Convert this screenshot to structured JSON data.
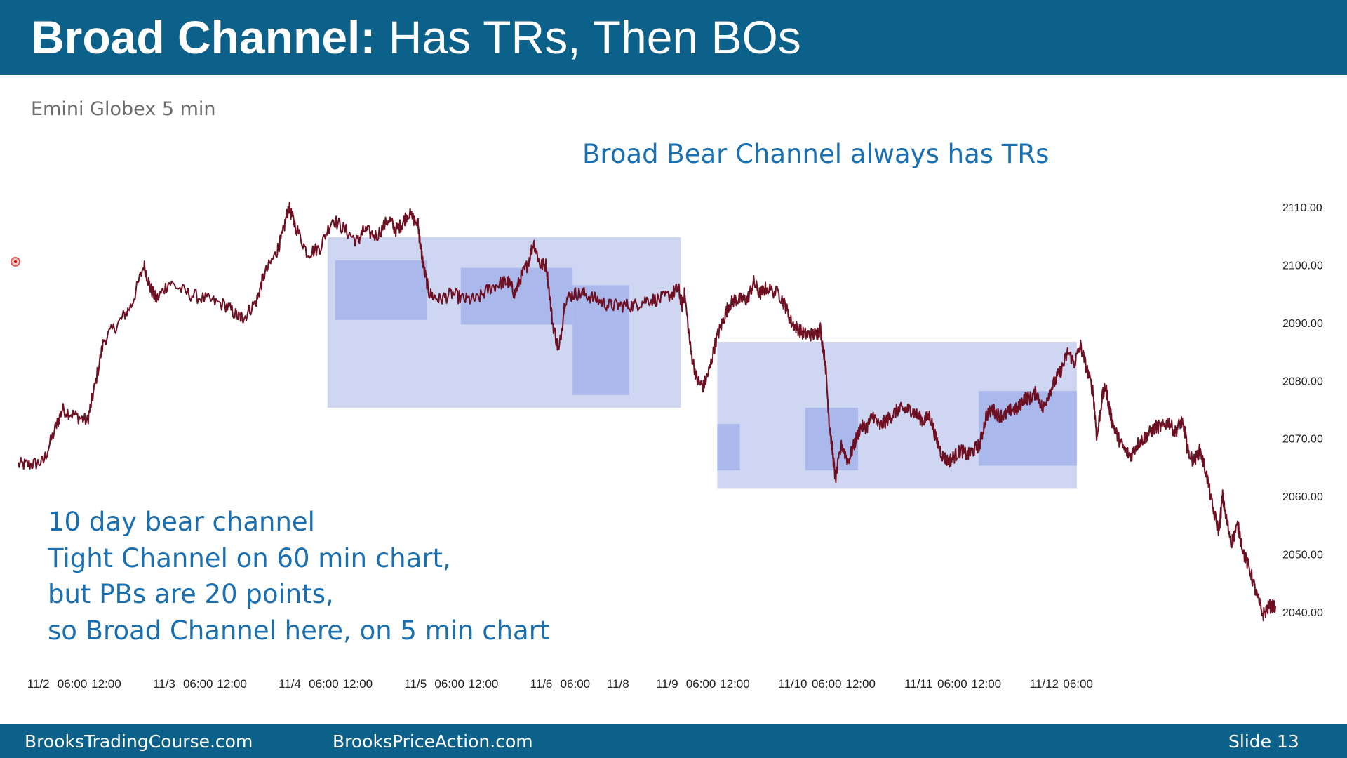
{
  "slide": {
    "title_bold": "Broad Channel:",
    "title_rest": " Has TRs, Then BOs",
    "subtitle": "Emini Globex 5 min",
    "annotation_top": "Broad Bear Channel always has TRs",
    "annotation_bottom": [
      "10 day bear channel",
      "Tight Channel on 60 min chart,",
      "but PBs are 20 points,",
      "so Broad Channel here, on 5 min chart"
    ],
    "footer": {
      "left": "BrooksTradingCourse.com",
      "middle": "BrooksPriceAction.com",
      "right": "Slide  13"
    }
  },
  "colors": {
    "header_bg": "#0b6189",
    "price_line": "#6e0f22",
    "big_range_fill": "#cfd6f1",
    "small_range_fill": "#a4b3ea",
    "annotation_text": "#1a6fb0"
  },
  "chart_data": {
    "type": "line",
    "title": "",
    "xlabel": "",
    "ylabel": "",
    "ylim": [
      2038,
      2112
    ],
    "y_ticks": [
      "2110.00",
      "2100.00",
      "2090.00",
      "2080.00",
      "2070.00",
      "2060.00",
      "2050.00",
      "2040.00"
    ],
    "y_tick_values": [
      2110,
      2100,
      2090,
      2080,
      2070,
      2060,
      2050,
      2040
    ],
    "x_range": [
      0,
      10
    ],
    "x_ticks": [
      {
        "label": "11/2",
        "x": 0.16
      },
      {
        "label": "06:00",
        "x": 0.43
      },
      {
        "label": "12:00",
        "x": 0.7
      },
      {
        "label": "11/3",
        "x": 1.16
      },
      {
        "label": "06:00",
        "x": 1.43
      },
      {
        "label": "12:00",
        "x": 1.7
      },
      {
        "label": "11/4",
        "x": 2.16
      },
      {
        "label": "06:00",
        "x": 2.43
      },
      {
        "label": "12:00",
        "x": 2.7
      },
      {
        "label": "11/5",
        "x": 3.16
      },
      {
        "label": "06:00",
        "x": 3.43
      },
      {
        "label": "12:00",
        "x": 3.7
      },
      {
        "label": "11/6",
        "x": 4.16
      },
      {
        "label": "06:00",
        "x": 4.43
      },
      {
        "label": "11/8",
        "x": 4.77
      },
      {
        "label": "11/9",
        "x": 5.16
      },
      {
        "label": "06:00",
        "x": 5.43
      },
      {
        "label": "12:00",
        "x": 5.7
      },
      {
        "label": "11/10",
        "x": 6.16
      },
      {
        "label": "06:00",
        "x": 6.43
      },
      {
        "label": "12:00",
        "x": 6.7
      },
      {
        "label": "11/11",
        "x": 7.16
      },
      {
        "label": "06:00",
        "x": 7.43
      },
      {
        "label": "12:00",
        "x": 7.7
      },
      {
        "label": "11/12",
        "x": 8.16
      },
      {
        "label": "06:00",
        "x": 8.43
      }
    ],
    "series": [
      {
        "values": [
          [
            0.0,
            2065.5
          ],
          [
            0.1,
            2065.5
          ],
          [
            0.2,
            2066
          ],
          [
            0.3,
            2072
          ],
          [
            0.35,
            2075
          ],
          [
            0.45,
            2074
          ],
          [
            0.55,
            2073
          ],
          [
            0.6,
            2078
          ],
          [
            0.68,
            2087
          ],
          [
            0.8,
            2090
          ],
          [
            0.9,
            2093
          ],
          [
            1.0,
            2100
          ],
          [
            1.05,
            2096
          ],
          [
            1.1,
            2094
          ],
          [
            1.2,
            2097
          ],
          [
            1.35,
            2095
          ],
          [
            1.5,
            2094
          ],
          [
            1.65,
            2093
          ],
          [
            1.75,
            2091
          ],
          [
            1.8,
            2091
          ],
          [
            1.9,
            2094
          ],
          [
            1.95,
            2098
          ],
          [
            2.05,
            2102
          ],
          [
            2.1,
            2105
          ],
          [
            2.15,
            2110
          ],
          [
            2.2,
            2107
          ],
          [
            2.3,
            2102
          ],
          [
            2.4,
            2103
          ],
          [
            2.5,
            2108
          ],
          [
            2.6,
            2106
          ],
          [
            2.7,
            2104
          ],
          [
            2.75,
            2106
          ],
          [
            2.85,
            2105
          ],
          [
            2.95,
            2108
          ],
          [
            3.0,
            2106
          ],
          [
            3.05,
            2107
          ],
          [
            3.1,
            2109
          ],
          [
            3.18,
            2107
          ],
          [
            3.2,
            2103
          ],
          [
            3.23,
            2099
          ],
          [
            3.27,
            2095
          ],
          [
            3.35,
            2094
          ],
          [
            3.45,
            2095
          ],
          [
            3.55,
            2094
          ],
          [
            3.65,
            2094
          ],
          [
            3.75,
            2096
          ],
          [
            3.85,
            2097
          ],
          [
            3.9,
            2097
          ],
          [
            3.95,
            2095
          ],
          [
            4.0,
            2098
          ],
          [
            4.05,
            2100
          ],
          [
            4.1,
            2104
          ],
          [
            4.15,
            2100
          ],
          [
            4.2,
            2100
          ],
          [
            4.25,
            2090
          ],
          [
            4.3,
            2085
          ],
          [
            4.35,
            2094
          ],
          [
            4.42,
            2095
          ],
          [
            4.5,
            2095
          ],
          [
            4.6,
            2094
          ],
          [
            4.7,
            2093
          ],
          [
            4.8,
            2093
          ],
          [
            4.9,
            2093
          ],
          [
            5.0,
            2094
          ],
          [
            5.1,
            2094
          ],
          [
            5.2,
            2095
          ],
          [
            5.25,
            2096
          ],
          [
            5.28,
            2093
          ],
          [
            5.3,
            2095
          ],
          [
            5.35,
            2085
          ],
          [
            5.4,
            2080
          ],
          [
            5.45,
            2079
          ],
          [
            5.5,
            2082
          ],
          [
            5.55,
            2087
          ],
          [
            5.6,
            2090
          ],
          [
            5.65,
            2093
          ],
          [
            5.7,
            2094
          ],
          [
            5.75,
            2094
          ],
          [
            5.8,
            2094
          ],
          [
            5.85,
            2097
          ],
          [
            5.9,
            2095
          ],
          [
            5.95,
            2096
          ],
          [
            6.05,
            2095
          ],
          [
            6.1,
            2093
          ],
          [
            6.15,
            2090
          ],
          [
            6.2,
            2089
          ],
          [
            6.25,
            2088
          ],
          [
            6.3,
            2088
          ],
          [
            6.35,
            2088
          ],
          [
            6.38,
            2089
          ],
          [
            6.42,
            2083
          ],
          [
            6.45,
            2073
          ],
          [
            6.48,
            2067
          ],
          [
            6.5,
            2063
          ],
          [
            6.55,
            2069
          ],
          [
            6.6,
            2066
          ],
          [
            6.65,
            2069
          ],
          [
            6.7,
            2072
          ],
          [
            6.75,
            2072
          ],
          [
            6.8,
            2074
          ],
          [
            6.85,
            2072
          ],
          [
            6.9,
            2073
          ],
          [
            6.95,
            2074
          ],
          [
            7.0,
            2075
          ],
          [
            7.05,
            2075
          ],
          [
            7.1,
            2075
          ],
          [
            7.15,
            2074
          ],
          [
            7.2,
            2073
          ],
          [
            7.25,
            2074
          ],
          [
            7.3,
            2070
          ],
          [
            7.35,
            2067
          ],
          [
            7.4,
            2066
          ],
          [
            7.45,
            2067
          ],
          [
            7.5,
            2068
          ],
          [
            7.55,
            2067
          ],
          [
            7.6,
            2068
          ],
          [
            7.65,
            2069
          ],
          [
            7.7,
            2074
          ],
          [
            7.75,
            2075
          ],
          [
            7.8,
            2074
          ],
          [
            7.85,
            2074
          ],
          [
            7.9,
            2075
          ],
          [
            7.95,
            2075
          ],
          [
            8.0,
            2077
          ],
          [
            8.05,
            2077
          ],
          [
            8.1,
            2078
          ],
          [
            8.15,
            2075
          ],
          [
            8.2,
            2078
          ],
          [
            8.25,
            2080
          ],
          [
            8.3,
            2082
          ],
          [
            8.35,
            2085
          ],
          [
            8.4,
            2083
          ],
          [
            8.45,
            2086
          ],
          [
            8.5,
            2082
          ],
          [
            8.55,
            2078
          ],
          [
            8.58,
            2070
          ],
          [
            8.62,
            2077
          ],
          [
            8.65,
            2079
          ],
          [
            8.68,
            2075
          ],
          [
            8.7,
            2073
          ],
          [
            8.75,
            2070
          ],
          [
            8.8,
            2068
          ],
          [
            8.85,
            2067
          ],
          [
            8.9,
            2069
          ],
          [
            8.95,
            2070
          ],
          [
            9.0,
            2071
          ],
          [
            9.05,
            2072
          ],
          [
            9.1,
            2072
          ],
          [
            9.15,
            2073
          ],
          [
            9.2,
            2071
          ],
          [
            9.25,
            2073
          ],
          [
            9.28,
            2071
          ],
          [
            9.3,
            2068
          ],
          [
            9.35,
            2066
          ],
          [
            9.4,
            2068
          ],
          [
            9.45,
            2064
          ],
          [
            9.5,
            2058
          ],
          [
            9.55,
            2054
          ],
          [
            9.58,
            2060
          ],
          [
            9.6,
            2057
          ],
          [
            9.65,
            2052
          ],
          [
            9.7,
            2055
          ],
          [
            9.75,
            2050
          ],
          [
            9.8,
            2047
          ],
          [
            9.85,
            2043
          ],
          [
            9.9,
            2039.5
          ],
          [
            9.95,
            2041
          ],
          [
            10.0,
            2041
          ]
        ]
      }
    ],
    "range_boxes": [
      {
        "kind": "big",
        "x0": 2.46,
        "x1": 5.27,
        "y0": 2075.3,
        "y1": 2104.8
      },
      {
        "kind": "small",
        "x0": 2.52,
        "x1": 3.25,
        "y0": 2090.5,
        "y1": 2100.8
      },
      {
        "kind": "small",
        "x0": 3.52,
        "x1": 4.41,
        "y0": 2089.7,
        "y1": 2099.5
      },
      {
        "kind": "small",
        "x0": 4.41,
        "x1": 4.86,
        "y0": 2077.5,
        "y1": 2096.5
      },
      {
        "kind": "big",
        "x0": 5.56,
        "x1": 8.42,
        "y0": 2061.3,
        "y1": 2086.7
      },
      {
        "kind": "small",
        "x0": 5.56,
        "x1": 5.74,
        "y0": 2064.5,
        "y1": 2072.5
      },
      {
        "kind": "small",
        "x0": 6.26,
        "x1": 6.68,
        "y0": 2064.5,
        "y1": 2075.3
      },
      {
        "kind": "small",
        "x0": 7.64,
        "x1": 8.42,
        "y0": 2065.3,
        "y1": 2078.2
      }
    ]
  }
}
